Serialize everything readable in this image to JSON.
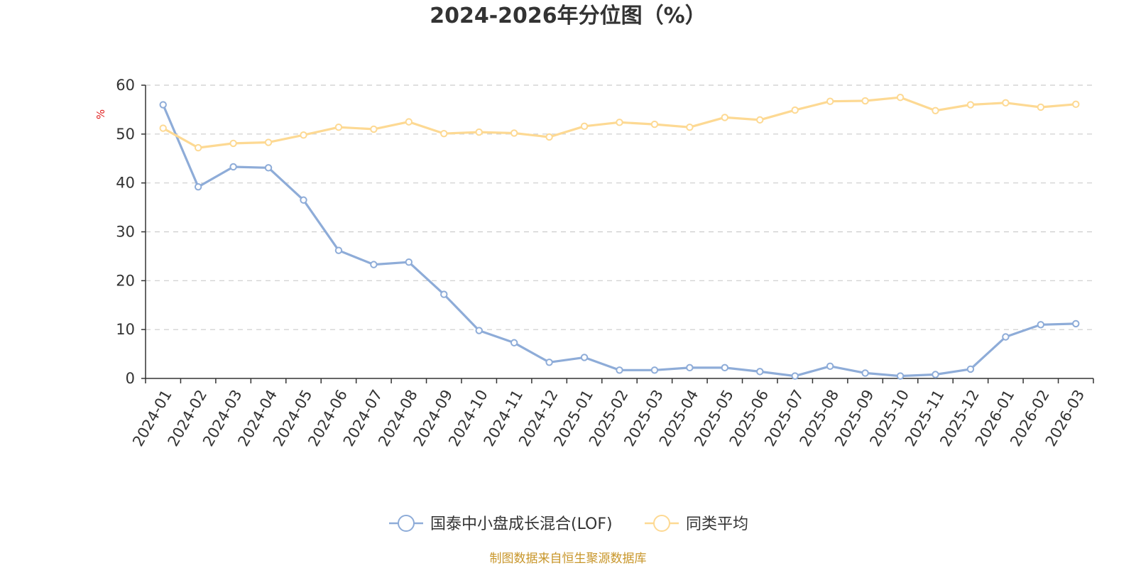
{
  "chart_data": {
    "type": "line",
    "title": "2024-2026年分位图（%）",
    "ylabel": "%",
    "xlabel": "",
    "ylim": [
      0,
      60
    ],
    "yticks": [
      0,
      10,
      20,
      30,
      40,
      50,
      60
    ],
    "grid": true,
    "legend_position": "bottom-center",
    "categories": [
      "2024-01",
      "2024-02",
      "2024-03",
      "2024-04",
      "2024-05",
      "2024-06",
      "2024-07",
      "2024-08",
      "2024-09",
      "2024-10",
      "2024-11",
      "2024-12",
      "2025-01",
      "2025-02",
      "2025-03",
      "2025-04",
      "2025-05",
      "2025-06",
      "2025-07",
      "2025-08",
      "2025-09",
      "2025-10",
      "2025-11",
      "2025-12",
      "2026-01",
      "2026-02",
      "2026-03"
    ],
    "series": [
      {
        "name": "国泰中小盘成长混合(LOF)",
        "color": "#8eacd8",
        "values": [
          56.0,
          39.2,
          43.3,
          43.1,
          36.5,
          26.2,
          23.3,
          23.8,
          17.2,
          9.8,
          7.3,
          3.3,
          4.3,
          1.7,
          1.7,
          2.2,
          2.2,
          1.4,
          0.5,
          2.5,
          1.1,
          0.5,
          0.8,
          1.9,
          8.5,
          11.0,
          11.2
        ]
      },
      {
        "name": "同类平均",
        "color": "#fdd993",
        "values": [
          51.2,
          47.2,
          48.1,
          48.3,
          49.8,
          51.4,
          51.0,
          52.5,
          50.1,
          50.4,
          50.2,
          49.4,
          51.6,
          52.4,
          52.0,
          51.4,
          53.4,
          52.9,
          54.9,
          56.7,
          56.8,
          57.5,
          54.8,
          56.0,
          56.4,
          55.5,
          56.1
        ]
      }
    ]
  },
  "source_text": "制图数据来自恒生聚源数据库",
  "colors": {
    "source_text": "#c8962a",
    "unit_label": "#e02020"
  }
}
